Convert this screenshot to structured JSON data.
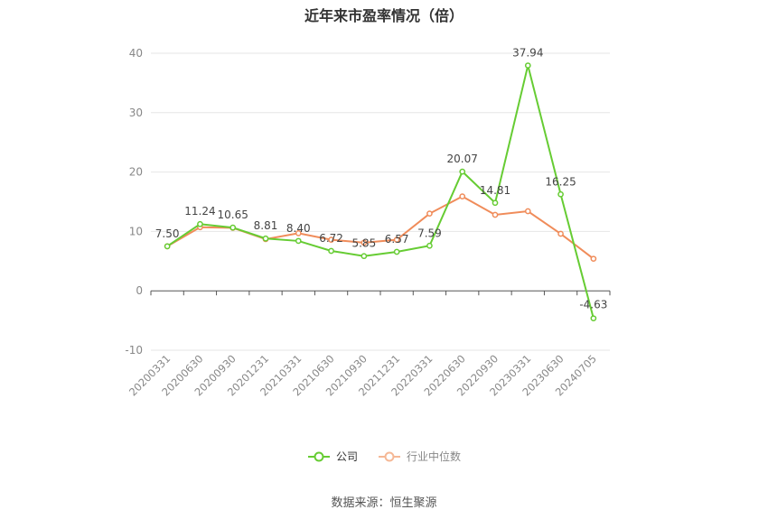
{
  "chart_data": {
    "type": "line",
    "title": "近年来市盈率情况（倍）",
    "categories": [
      "20200331",
      "20200630",
      "20200930",
      "20201231",
      "20210331",
      "20210630",
      "20210930",
      "20211231",
      "20220331",
      "20220630",
      "20220930",
      "20230331",
      "20230630",
      "20240705"
    ],
    "ylim": [
      -10,
      40
    ],
    "yticks": [
      -10,
      0,
      10,
      20,
      30,
      40
    ],
    "grid": true,
    "legend_position": "bottom",
    "series": [
      {
        "name": "公司",
        "color": "#66cc33",
        "values": [
          7.5,
          11.24,
          10.65,
          8.81,
          8.4,
          6.72,
          5.85,
          6.57,
          7.59,
          20.07,
          14.81,
          37.94,
          16.25,
          -4.63
        ],
        "labels": [
          "7.50",
          "11.24",
          "10.65",
          "8.81",
          "8.40",
          "6.72",
          "5.85",
          "6.57",
          "7.59",
          "20.07",
          "14.81",
          "37.94",
          "16.25",
          "-4.63"
        ]
      },
      {
        "name": "行业中位数",
        "color": "#f08c5a",
        "values": [
          7.5,
          10.7,
          10.6,
          8.7,
          9.7,
          8.6,
          8.1,
          8.6,
          13.0,
          15.9,
          12.8,
          13.4,
          9.6,
          5.4
        ]
      }
    ]
  },
  "source": "数据来源：恒生聚源"
}
